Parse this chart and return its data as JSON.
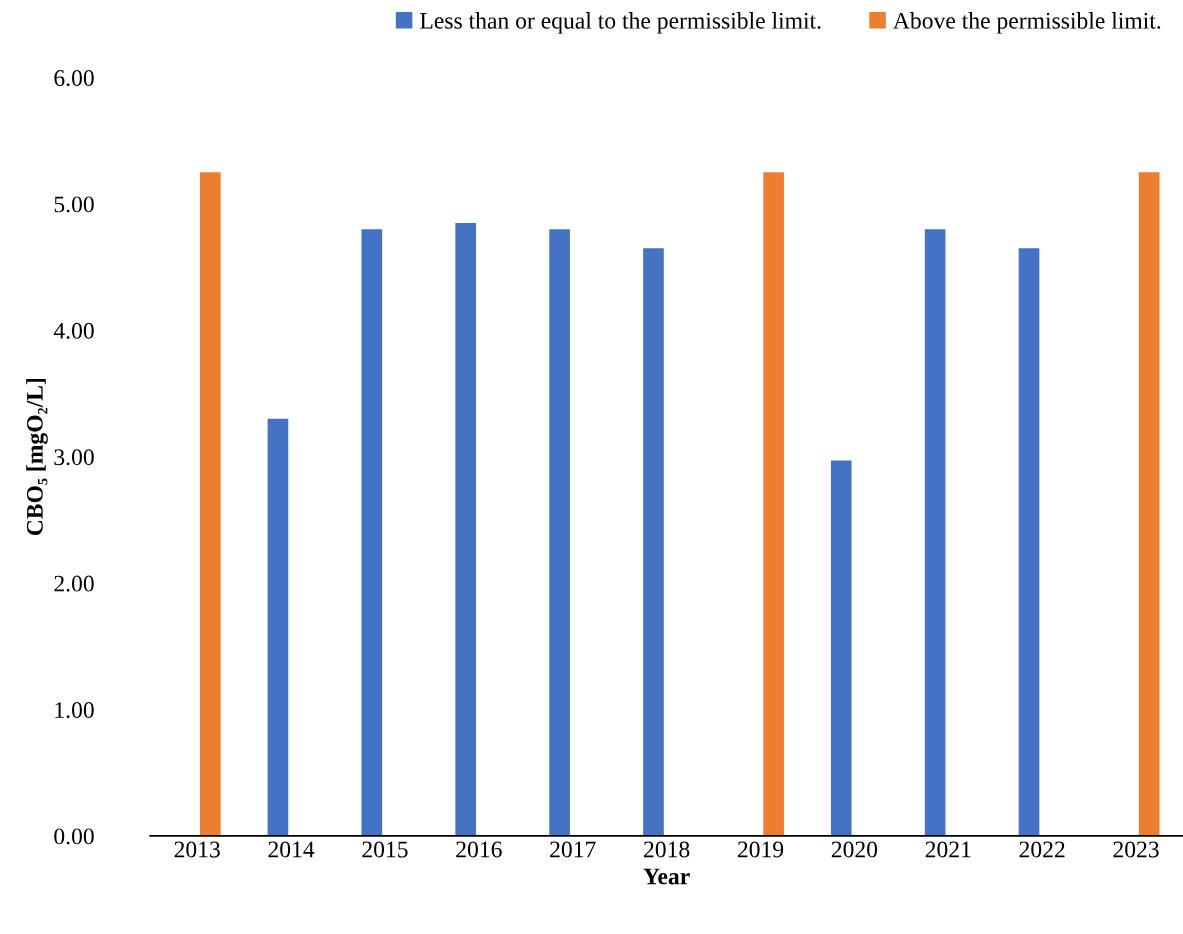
{
  "chart_data": {
    "type": "bar",
    "xlabel": "Year",
    "ylabel": "CBO₅ [mgO₂/L]",
    "categories": [
      "2013",
      "2014",
      "2015",
      "2016",
      "2017",
      "2018",
      "2019",
      "2020",
      "2021",
      "2022",
      "2023"
    ],
    "series": [
      {
        "name": "Less than or equal to the permissible limit.",
        "color": "#4472c4",
        "values": [
          null,
          3.3,
          4.8,
          4.85,
          4.8,
          4.65,
          null,
          2.97,
          4.8,
          4.65,
          null
        ]
      },
      {
        "name": "Above the permissible limit.",
        "color": "#ed7d31",
        "values": [
          5.25,
          null,
          null,
          null,
          null,
          null,
          5.25,
          null,
          null,
          null,
          5.25
        ]
      }
    ],
    "ylim": [
      0,
      6
    ],
    "yticks": [
      {
        "value": 0,
        "label": "0.00"
      },
      {
        "value": 1,
        "label": "1.00"
      },
      {
        "value": 2,
        "label": "2.00"
      },
      {
        "value": 3,
        "label": "3.00"
      },
      {
        "value": 4,
        "label": "4.00"
      },
      {
        "value": 5,
        "label": "5.00"
      },
      {
        "value": 6,
        "label": "6.00"
      }
    ],
    "grid": false,
    "legend": "top right"
  }
}
